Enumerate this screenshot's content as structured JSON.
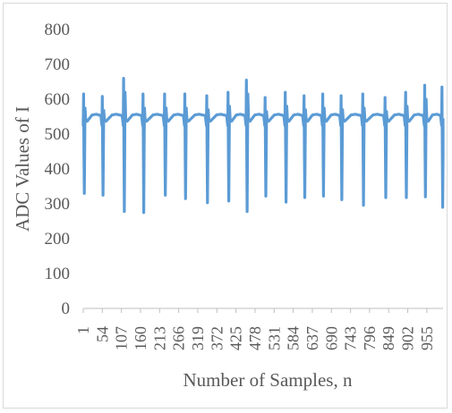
{
  "chart_data": {
    "type": "line",
    "xlabel": "Number of Samples, n",
    "ylabel": "ADC Values of I",
    "ylim": [
      0,
      800
    ],
    "yticks": [
      0,
      100,
      200,
      300,
      400,
      500,
      600,
      700,
      800
    ],
    "xlim": [
      1,
      1000
    ],
    "xticks": [
      1,
      54,
      107,
      160,
      213,
      266,
      319,
      372,
      425,
      478,
      531,
      584,
      637,
      690,
      743,
      796,
      849,
      902,
      955
    ],
    "grid": false,
    "legend": "none",
    "baseline": 545,
    "series": [
      {
        "color": "#5b9bd5",
        "beats": [
          {
            "x": 3,
            "peak": 615,
            "trough": 330
          },
          {
            "x": 55,
            "peak": 608,
            "trough": 325
          },
          {
            "x": 114,
            "peak": 660,
            "trough": 278
          },
          {
            "x": 168,
            "peak": 615,
            "trough": 275
          },
          {
            "x": 228,
            "peak": 615,
            "trough": 325
          },
          {
            "x": 284,
            "peak": 615,
            "trough": 315
          },
          {
            "x": 345,
            "peak": 610,
            "trough": 303
          },
          {
            "x": 404,
            "peak": 620,
            "trough": 308
          },
          {
            "x": 455,
            "peak": 655,
            "trough": 278
          },
          {
            "x": 507,
            "peak": 605,
            "trough": 322
          },
          {
            "x": 563,
            "peak": 620,
            "trough": 305
          },
          {
            "x": 615,
            "peak": 610,
            "trough": 318
          },
          {
            "x": 667,
            "peak": 615,
            "trough": 322
          },
          {
            "x": 718,
            "peak": 610,
            "trough": 312
          },
          {
            "x": 778,
            "peak": 615,
            "trough": 296
          },
          {
            "x": 840,
            "peak": 605,
            "trough": 318
          },
          {
            "x": 897,
            "peak": 620,
            "trough": 318
          },
          {
            "x": 950,
            "peak": 640,
            "trough": 320
          },
          {
            "x": 998,
            "peak": 635,
            "trough": 290
          }
        ]
      }
    ]
  }
}
